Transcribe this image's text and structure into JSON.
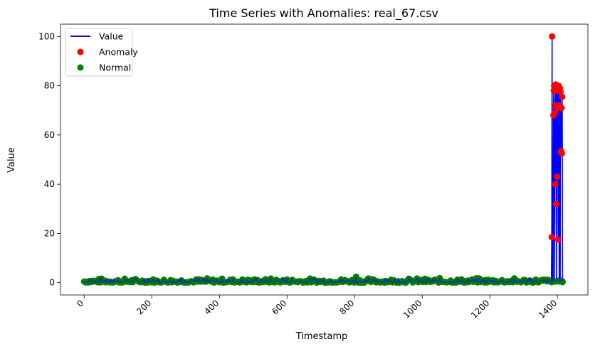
{
  "chart_data": {
    "type": "line",
    "title": "Time Series with Anomalies: real_67.csv",
    "xlabel": "Timestamp",
    "ylabel": "Value",
    "xlim": [
      -70,
      1490
    ],
    "ylim": [
      -5,
      105
    ],
    "xticks": [
      0,
      200,
      400,
      600,
      800,
      1000,
      1200,
      1400
    ],
    "yticks": [
      0,
      20,
      40,
      60,
      80,
      100
    ],
    "xtick_rotation": 45,
    "grid": false,
    "legend": {
      "placement": "top-left",
      "entries": [
        {
          "label": "Value",
          "marker": "line",
          "color": "#0000ff"
        },
        {
          "label": "Anomaly",
          "marker": "dot",
          "color": "#ff0000"
        },
        {
          "label": "Normal",
          "marker": "dot",
          "color": "#008000"
        }
      ]
    },
    "series": [
      {
        "name": "Value",
        "kind": "line",
        "color": "#0000ff",
        "baseline": {
          "x_range": [
            0,
            1380
          ],
          "approx_value": 0.5,
          "noise_range": [
            0,
            2
          ]
        },
        "points": [
          [
            1380,
            0.5
          ],
          [
            1382,
            0.2
          ],
          [
            1383,
            18.5
          ],
          [
            1384,
            100
          ],
          [
            1385,
            0.3
          ],
          [
            1387,
            0.8
          ],
          [
            1388,
            68
          ],
          [
            1389,
            78
          ],
          [
            1390,
            80
          ],
          [
            1391,
            0.5
          ],
          [
            1392,
            69
          ],
          [
            1393,
            40
          ],
          [
            1394,
            72
          ],
          [
            1395,
            80.5
          ],
          [
            1396,
            32
          ],
          [
            1397,
            0.5
          ],
          [
            1398,
            79
          ],
          [
            1399,
            43
          ],
          [
            1400,
            78
          ],
          [
            1401,
            71
          ],
          [
            1402,
            17.5
          ],
          [
            1403,
            80
          ],
          [
            1404,
            72
          ],
          [
            1405,
            0.5
          ],
          [
            1406,
            1.0
          ],
          [
            1407,
            79
          ],
          [
            1408,
            0.5
          ],
          [
            1409,
            77.5
          ],
          [
            1410,
            53
          ],
          [
            1411,
            53.5
          ],
          [
            1412,
            71
          ],
          [
            1413,
            52.5
          ],
          [
            1414,
            75.5
          ],
          [
            1415,
            0.5
          ]
        ]
      },
      {
        "name": "Anomaly",
        "kind": "scatter",
        "color": "#ff0000",
        "points": [
          [
            1383,
            18.5
          ],
          [
            1384,
            100
          ],
          [
            1388,
            68
          ],
          [
            1389,
            78
          ],
          [
            1390,
            80
          ],
          [
            1392,
            69
          ],
          [
            1393,
            40
          ],
          [
            1394,
            72
          ],
          [
            1395,
            80.5
          ],
          [
            1396,
            32
          ],
          [
            1398,
            79
          ],
          [
            1399,
            43
          ],
          [
            1400,
            78
          ],
          [
            1401,
            71
          ],
          [
            1402,
            17.5
          ],
          [
            1403,
            80
          ],
          [
            1404,
            72
          ],
          [
            1407,
            79
          ],
          [
            1409,
            77.5
          ],
          [
            1410,
            53
          ],
          [
            1411,
            53.5
          ],
          [
            1412,
            71
          ],
          [
            1413,
            52.5
          ],
          [
            1414,
            75.5
          ]
        ]
      },
      {
        "name": "Normal",
        "kind": "scatter",
        "color": "#008000",
        "x_range": [
          0,
          1415
        ],
        "approx_value": 0.5,
        "noise_range": [
          0,
          2
        ],
        "notable_points": [
          [
            805,
            2.4
          ],
          [
            1415,
            0.2
          ]
        ]
      }
    ]
  }
}
